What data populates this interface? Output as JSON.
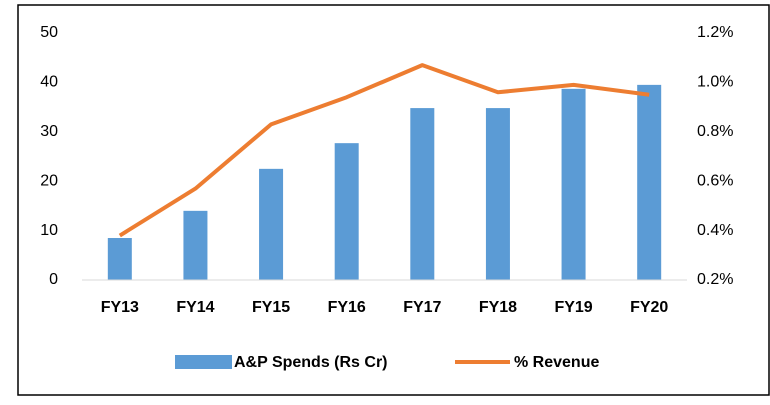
{
  "chart_data": {
    "type": "bar_line",
    "categories": [
      "FY13",
      "FY14",
      "FY15",
      "FY16",
      "FY17",
      "FY18",
      "FY19",
      "FY20"
    ],
    "series": [
      {
        "name": "A&P Spends (Rs Cr)",
        "type": "bar",
        "color": "#5b9bd5",
        "values": [
          8.5,
          14,
          22.5,
          27.7,
          34.8,
          34.8,
          38.7,
          39.5
        ]
      },
      {
        "name": "% Revenue",
        "type": "line",
        "axis": "y2",
        "color": "#ed7d31",
        "values": [
          0.38,
          0.57,
          0.83,
          0.94,
          1.07,
          0.96,
          0.99,
          0.95
        ]
      }
    ],
    "ylim": [
      0,
      50
    ],
    "yticks": [
      0,
      10,
      20,
      30,
      40,
      50
    ],
    "y2lim": [
      0.2,
      1.2
    ],
    "y2ticks": [
      {
        "value": 0.2,
        "label": "0.2%"
      },
      {
        "value": 0.4,
        "label": "0.4%"
      },
      {
        "value": 0.6,
        "label": "0.6%"
      },
      {
        "value": 0.8,
        "label": "0.8%"
      },
      {
        "value": 1.0,
        "label": "1.0%"
      },
      {
        "value": 1.2,
        "label": "1.2%"
      }
    ],
    "grid": false,
    "legend": "bottom"
  }
}
